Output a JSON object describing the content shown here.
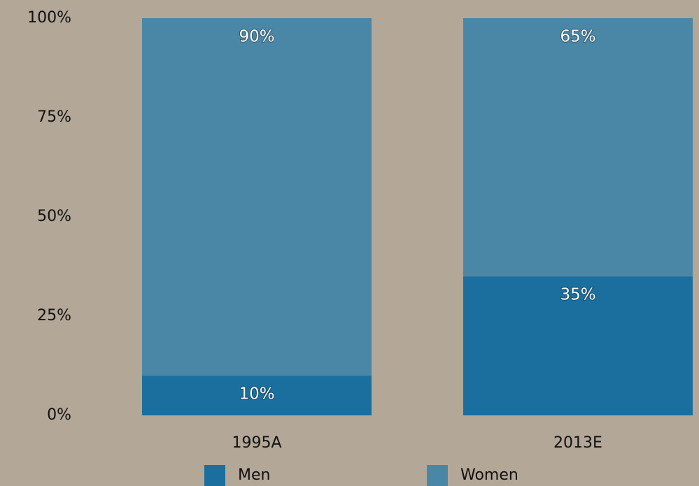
{
  "chart_data": {
    "type": "stacked_bar",
    "categories": [
      "1995A",
      "2013E"
    ],
    "series": [
      {
        "name": "Men",
        "color": "#1b6f9e",
        "values": [
          10,
          35
        ],
        "value_labels": [
          "10%",
          "35%"
        ]
      },
      {
        "name": "Women",
        "color": "#4a86a6",
        "values": [
          90,
          65
        ],
        "value_labels": [
          "90%",
          "65%"
        ]
      }
    ],
    "ylim": [
      0,
      100
    ],
    "yticks": [
      {
        "value": 0,
        "label": "0%"
      },
      {
        "value": 25,
        "label": "25%"
      },
      {
        "value": 50,
        "label": "50%"
      },
      {
        "value": 75,
        "label": "75%"
      },
      {
        "value": 100,
        "label": "100%"
      }
    ],
    "legend": "bottom"
  }
}
